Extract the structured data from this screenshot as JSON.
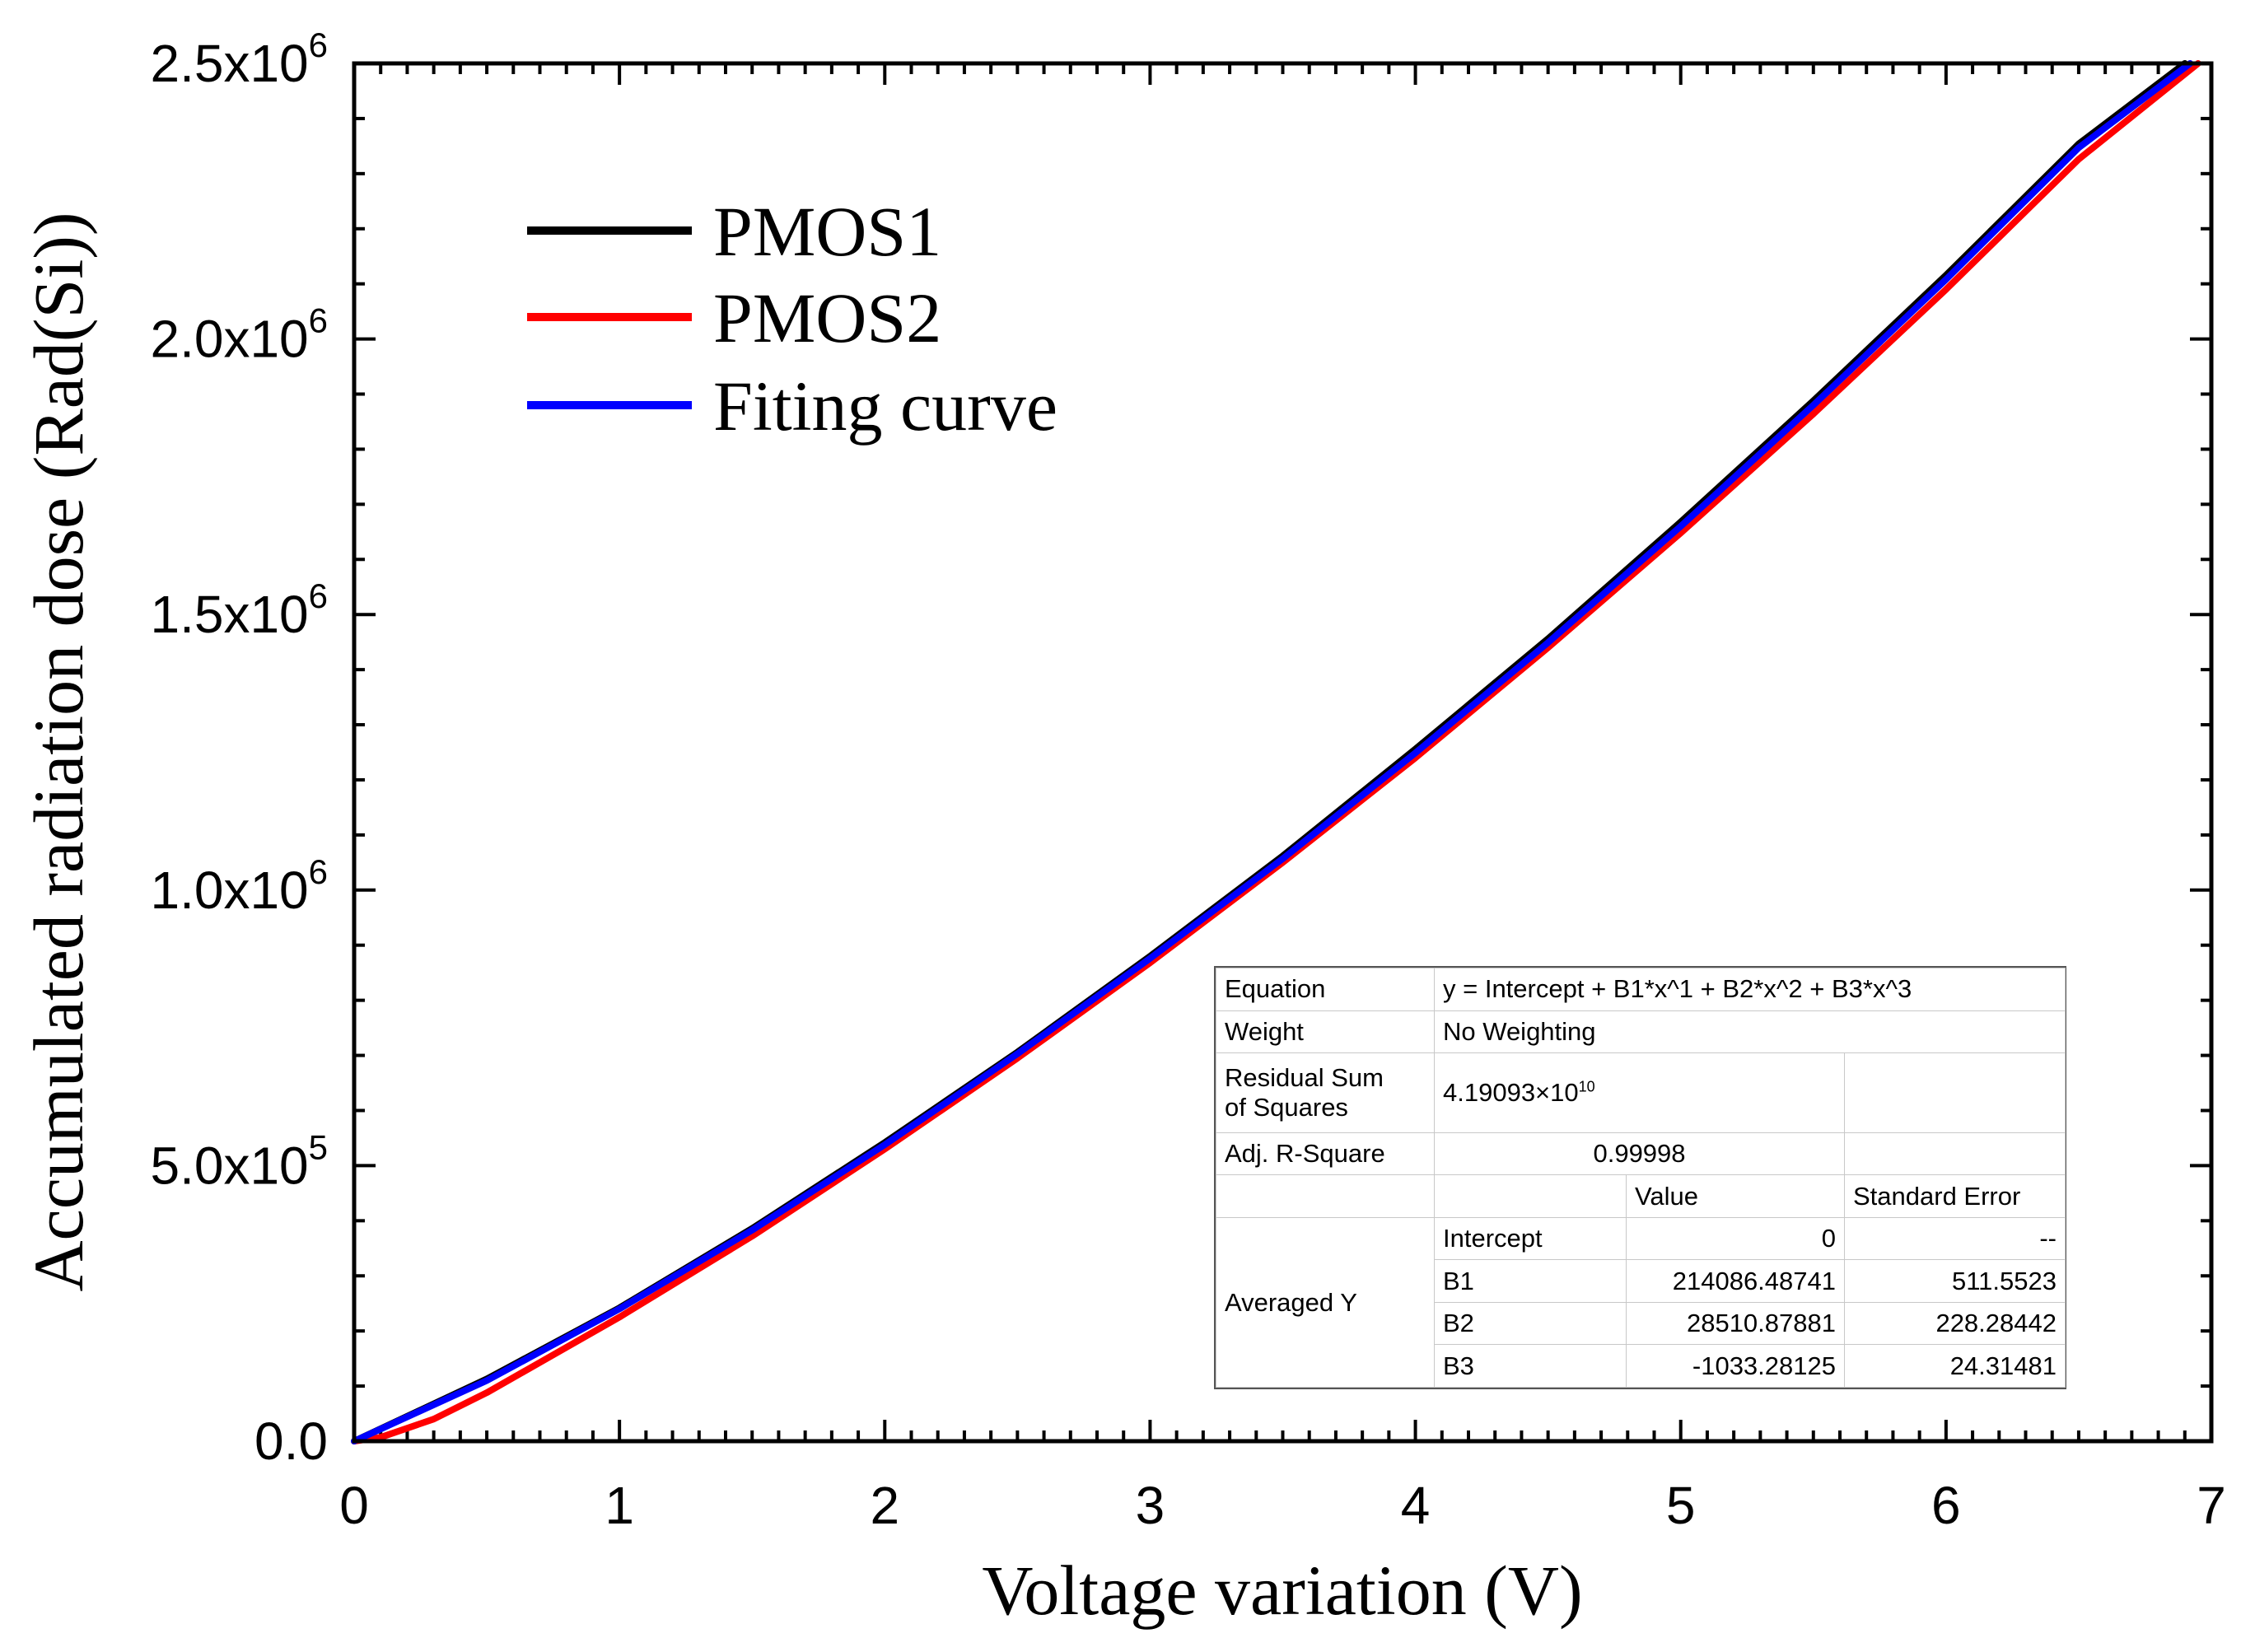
{
  "chart_data": {
    "type": "line",
    "xlabel": "Voltage variation (V)",
    "ylabel": "Accumulated radiation dose (Rad(Si))",
    "xlim": [
      0,
      7
    ],
    "ylim": [
      0,
      2500000
    ],
    "x_ticks": [
      "0",
      "1",
      "2",
      "3",
      "4",
      "5",
      "6",
      "7"
    ],
    "y_ticks": [
      {
        "mantissa": "0.0",
        "exp": ""
      },
      {
        "mantissa": "5.0x10",
        "exp": "5"
      },
      {
        "mantissa": "1.0x10",
        "exp": "6"
      },
      {
        "mantissa": "1.5x10",
        "exp": "6"
      },
      {
        "mantissa": "2.0x10",
        "exp": "6"
      },
      {
        "mantissa": "2.5x10",
        "exp": "6"
      }
    ],
    "legend_position": "top-left",
    "series": [
      {
        "name": "PMOS1",
        "color": "#000000",
        "x": [
          0,
          0.5,
          1,
          1.5,
          2,
          2.5,
          3,
          3.5,
          4,
          4.5,
          5,
          5.5,
          6,
          6.5,
          6.9
        ],
        "y": [
          0,
          113000,
          242000,
          386000,
          542000,
          706000,
          880000,
          1062000,
          1256000,
          1456000,
          1668000,
          1888000,
          2116000,
          2354000,
          2500000
        ]
      },
      {
        "name": "PMOS2",
        "color": "#ff0000",
        "x": [
          0,
          0.1,
          0.3,
          0.5,
          1,
          1.5,
          2,
          2.5,
          3,
          3.5,
          4,
          4.5,
          5,
          5.5,
          6,
          6.5,
          6.95
        ],
        "y": [
          0,
          7000,
          40000,
          88000,
          225000,
          372000,
          530000,
          695000,
          868000,
          1050000,
          1240000,
          1440000,
          1648000,
          1864000,
          2090000,
          2326000,
          2500000
        ]
      },
      {
        "name": "Fiting curve",
        "color": "#0000ff",
        "x": [
          0,
          0.5,
          1,
          1.5,
          2,
          2.5,
          3,
          3.5,
          4,
          4.5,
          5,
          5.5,
          6,
          6.5,
          6.92
        ],
        "y": [
          0,
          110000,
          240000,
          383000,
          538000,
          703000,
          876000,
          1057000,
          1249000,
          1449000,
          1660000,
          1880000,
          2108000,
          2347000,
          2500000
        ]
      }
    ]
  },
  "fit_table": {
    "equation_label": "Equation",
    "equation_value": "y = Intercept + B1*x^1 + B2*x^2 + B3*x^3",
    "weight_label": "Weight",
    "weight_value": "No Weighting",
    "rss_label_line1": "Residual Sum",
    "rss_label_line2": "of Squares",
    "rss_mantissa": "4.19093×10",
    "rss_exp": "10",
    "adjr_label": "Adj. R-Square",
    "adjr_value": "0.99998",
    "value_header": "Value",
    "stderr_header": "Standard Error",
    "group_label": "Averaged Y",
    "rows": [
      {
        "param": "Intercept",
        "value": "0",
        "error": "--"
      },
      {
        "param": "B1",
        "value": "214086.48741",
        "error": "511.5523"
      },
      {
        "param": "B2",
        "value": "28510.87881",
        "error": "228.28442"
      },
      {
        "param": "B3",
        "value": "-1033.28125",
        "error": "24.31481"
      }
    ]
  }
}
